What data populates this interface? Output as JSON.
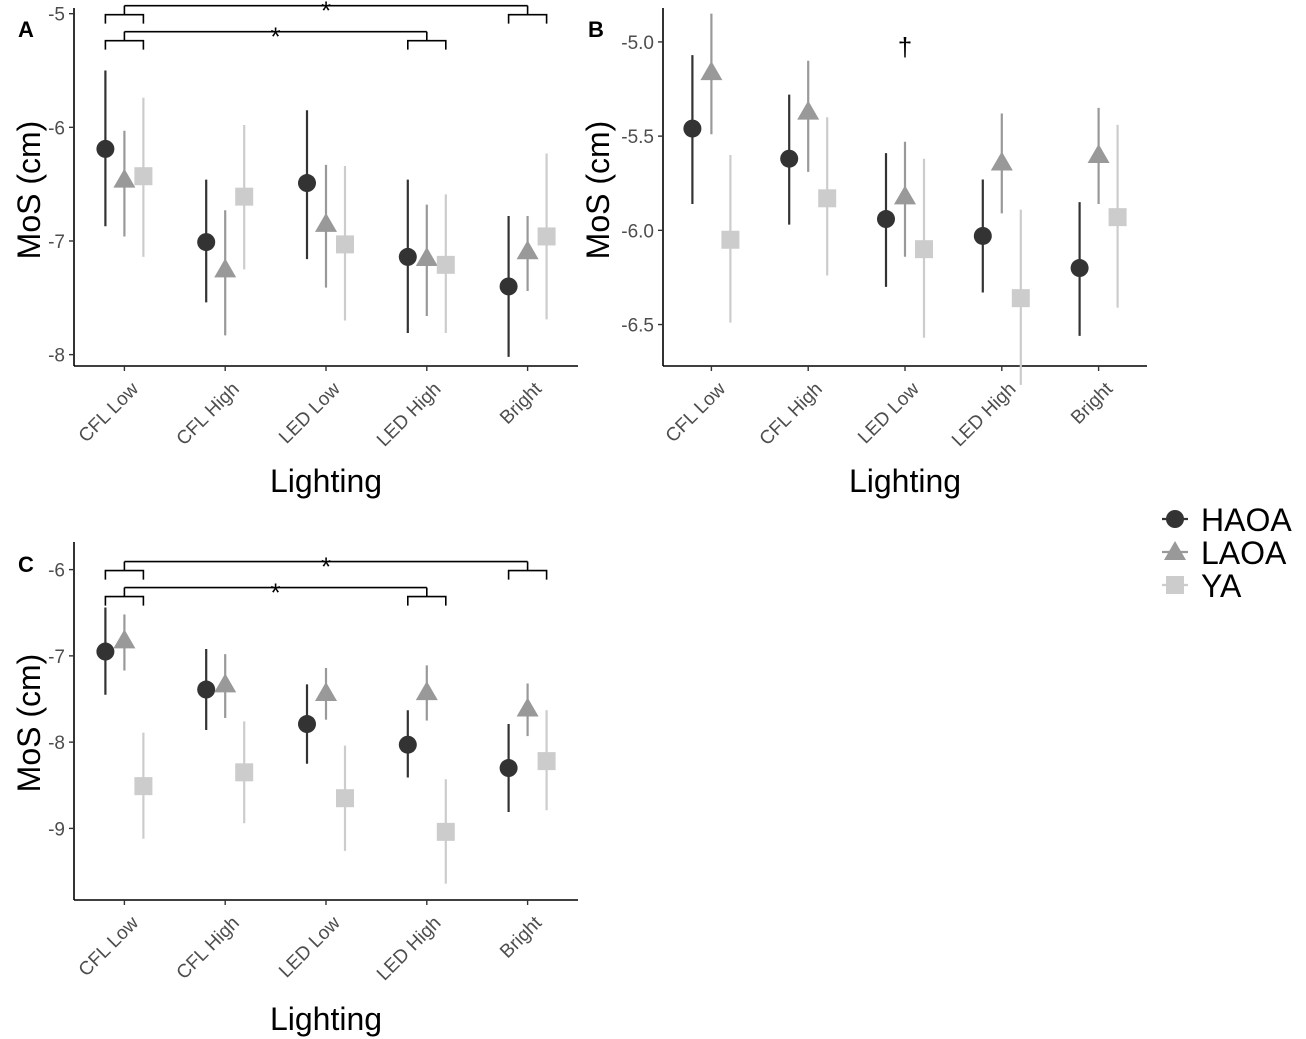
{
  "chart_data": [
    {
      "panel": "A",
      "type": "scatter",
      "xlabel": "Lighting",
      "ylabel": "MoS (cm)",
      "categories": [
        "CFL Low",
        "CFL High",
        "LED Low",
        "LED High",
        "Bright"
      ],
      "ylim": [
        -8.1,
        -4.95
      ],
      "yticks": [
        -5,
        -6,
        -7,
        -8
      ],
      "ytick_labels": [
        "-5",
        "-6",
        "-7",
        "-8"
      ],
      "grid": false,
      "series": [
        {
          "name": "HAOA",
          "values": [
            -6.19,
            -7.01,
            -6.49,
            -7.14,
            -7.4
          ],
          "lower": [
            -6.87,
            -7.54,
            -7.16,
            -7.81,
            -8.02
          ],
          "upper": [
            -5.5,
            -6.46,
            -5.85,
            -6.46,
            -6.78
          ]
        },
        {
          "name": "LAOA",
          "values": [
            -6.46,
            -7.25,
            -6.85,
            -7.15,
            -7.09
          ],
          "lower": [
            -6.96,
            -7.83,
            -7.41,
            -7.66,
            -7.44
          ],
          "upper": [
            -6.03,
            -6.73,
            -6.33,
            -6.68,
            -6.78
          ]
        },
        {
          "name": "YA",
          "values": [
            -6.43,
            -6.61,
            -7.03,
            -7.21,
            -6.96
          ],
          "lower": [
            -7.14,
            -7.25,
            -7.7,
            -7.81,
            -7.69
          ],
          "upper": [
            -5.74,
            -5.98,
            -6.34,
            -6.59,
            -6.23
          ]
        }
      ],
      "annotations": [
        {
          "text": "*",
          "from": 0,
          "to": 4
        },
        {
          "text": "*",
          "from": 0,
          "to": 3
        }
      ]
    },
    {
      "panel": "B",
      "type": "scatter",
      "xlabel": "Lighting",
      "ylabel": "MoS (cm)",
      "categories": [
        "CFL Low",
        "CFL High",
        "LED Low",
        "LED High",
        "Bright"
      ],
      "ylim": [
        -6.72,
        -4.82
      ],
      "yticks": [
        -5.0,
        -5.5,
        -6.0,
        -6.5
      ],
      "ytick_labels": [
        "-5.0",
        "-5.5",
        "-6.0",
        "-6.5"
      ],
      "grid": false,
      "series": [
        {
          "name": "HAOA",
          "values": [
            -5.46,
            -5.62,
            -5.94,
            -6.03,
            -6.2
          ],
          "lower": [
            -5.86,
            -5.97,
            -6.3,
            -6.33,
            -6.56
          ],
          "upper": [
            -5.07,
            -5.28,
            -5.59,
            -5.73,
            -5.85
          ]
        },
        {
          "name": "LAOA",
          "values": [
            -5.16,
            -5.37,
            -5.82,
            -5.64,
            -5.6
          ],
          "lower": [
            -5.49,
            -5.69,
            -6.14,
            -5.91,
            -5.86
          ],
          "upper": [
            -4.85,
            -5.1,
            -5.53,
            -5.38,
            -5.35
          ]
        },
        {
          "name": "YA",
          "values": [
            -6.05,
            -5.83,
            -6.1,
            -6.36,
            -5.93
          ],
          "lower": [
            -6.49,
            -6.24,
            -6.57,
            -6.82,
            -6.41
          ],
          "upper": [
            -5.6,
            -5.4,
            -5.62,
            -5.89,
            -5.44
          ]
        }
      ],
      "annotations": [
        {
          "text": "†",
          "at": 2
        }
      ]
    },
    {
      "panel": "C",
      "type": "scatter",
      "xlabel": "Lighting",
      "ylabel": "MoS (cm)",
      "categories": [
        "CFL Low",
        "CFL High",
        "LED Low",
        "LED High",
        "Bright"
      ],
      "ylim": [
        -9.83,
        -5.68
      ],
      "yticks": [
        -6,
        -7,
        -8,
        -9
      ],
      "ytick_labels": [
        "-6",
        "-7",
        "-8",
        "-9"
      ],
      "grid": false,
      "series": [
        {
          "name": "HAOA",
          "values": [
            -6.95,
            -7.39,
            -7.79,
            -8.03,
            -8.3
          ],
          "lower": [
            -7.45,
            -7.86,
            -8.25,
            -8.41,
            -8.81
          ],
          "upper": [
            -6.44,
            -6.92,
            -7.33,
            -7.63,
            -7.79
          ]
        },
        {
          "name": "LAOA",
          "values": [
            -6.82,
            -7.33,
            -7.43,
            -7.42,
            -7.61
          ],
          "lower": [
            -7.17,
            -7.72,
            -7.74,
            -7.75,
            -7.93
          ],
          "upper": [
            -6.52,
            -6.98,
            -7.14,
            -7.11,
            -7.32
          ]
        },
        {
          "name": "YA",
          "values": [
            -8.51,
            -8.35,
            -8.65,
            -9.04,
            -8.22
          ],
          "lower": [
            -9.12,
            -8.94,
            -9.26,
            -9.64,
            -8.79
          ],
          "upper": [
            -7.89,
            -7.76,
            -8.04,
            -8.43,
            -7.63
          ]
        }
      ],
      "annotations": [
        {
          "text": "*",
          "from": 0,
          "to": 4
        },
        {
          "text": "*",
          "from": 0,
          "to": 3
        }
      ]
    }
  ],
  "legend": {
    "placement": "right",
    "entries": [
      {
        "label": "HAOA",
        "shape": "circle",
        "color": "#333333"
      },
      {
        "label": "LAOA",
        "shape": "triangle",
        "color": "#999999"
      },
      {
        "label": "YA",
        "shape": "square",
        "color": "#cccccc"
      }
    ]
  }
}
